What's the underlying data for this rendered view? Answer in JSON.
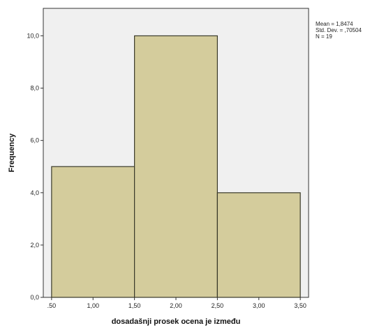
{
  "chart_data": {
    "type": "bar",
    "subtype": "histogram",
    "bins": [
      {
        "start": 0.5,
        "end": 1.5,
        "frequency": 5
      },
      {
        "start": 1.5,
        "end": 2.5,
        "frequency": 10
      },
      {
        "start": 2.5,
        "end": 3.5,
        "frequency": 4
      }
    ],
    "x_ticks": [
      ".50",
      "1,00",
      "1,50",
      "2,00",
      "2,50",
      "3,00",
      "3,50"
    ],
    "x_tick_values": [
      0.5,
      1.0,
      1.5,
      2.0,
      2.5,
      3.0,
      3.5
    ],
    "y_ticks": [
      "0,0",
      "2,0",
      "4,0",
      "6,0",
      "8,0",
      "10,0"
    ],
    "y_tick_values": [
      0,
      2,
      4,
      6,
      8,
      10
    ],
    "xlim": [
      0.4,
      3.6
    ],
    "ylim": [
      0,
      11.05
    ],
    "xlabel": "dosadašnji prosek ocena je između",
    "ylabel": "Frequency",
    "stats": {
      "mean": "Mean = 1,8474",
      "std_dev": "Std. Dev. = ,70504",
      "n": "N = 19"
    },
    "grid": false,
    "colors": {
      "bar_fill": "#d4cc9c",
      "bar_stroke": "#3a3a2a",
      "plot_background": "#f0f0f0",
      "axis": "#333333"
    }
  }
}
